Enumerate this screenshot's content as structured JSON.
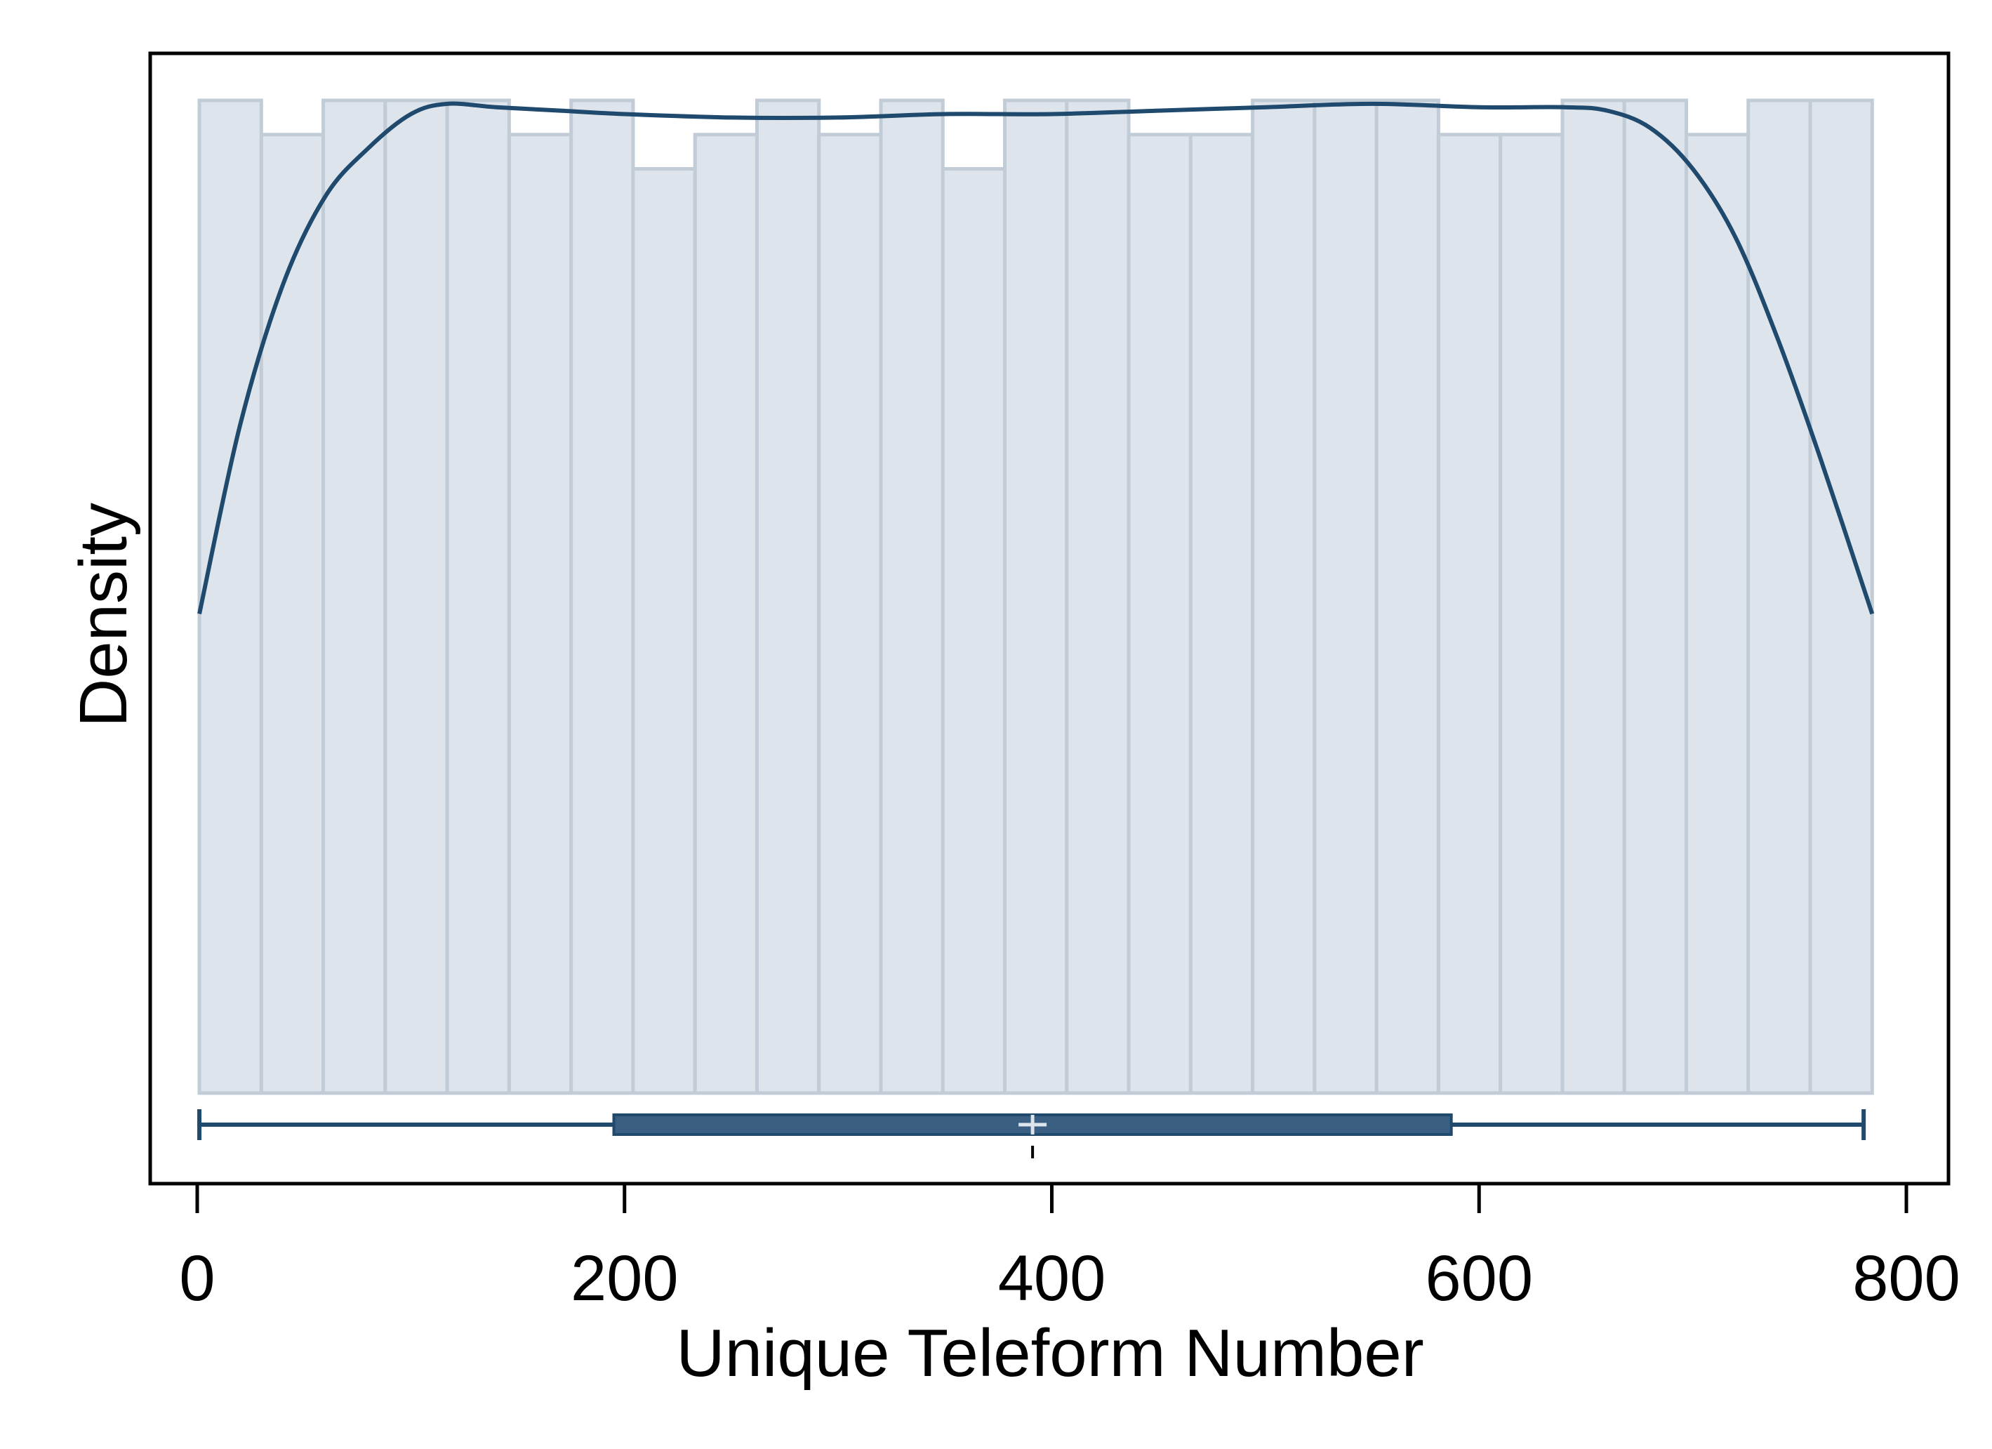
{
  "colors": {
    "background": "#ffffff",
    "bar_fill": "#dde4eb",
    "bar_stroke": "#c1ccd7",
    "kde_line": "#1f4a6e",
    "box_fill": "#3b5f82",
    "box_stroke": "#1f4a6e",
    "mean_marker": "#dde4eb",
    "frame": "#000000"
  },
  "chart_data": {
    "type": "bar",
    "subtype": "histogram_with_kde_and_boxplot",
    "title": "",
    "xlabel": "Unique Teleform Number",
    "ylabel": "Density",
    "xlim": [
      -10,
      820
    ],
    "x_ticks": [
      0,
      200,
      400,
      600,
      800
    ],
    "y_ticks": [],
    "grid": false,
    "legend": "none",
    "histogram": {
      "bin_edges": [
        1,
        30,
        59,
        88,
        117,
        146,
        175,
        204,
        233,
        262,
        291,
        320,
        349,
        378,
        407,
        436,
        465,
        494,
        523,
        552,
        581,
        610,
        639,
        668,
        697,
        726,
        755,
        784
      ],
      "counts": [
        29,
        28,
        29,
        29,
        29,
        28,
        29,
        27,
        28,
        29,
        28,
        29,
        27,
        29,
        29,
        28,
        28,
        29,
        29,
        29,
        28,
        28,
        29,
        29,
        28,
        29,
        29
      ]
    },
    "kde": {
      "x": [
        1,
        20,
        40,
        60,
        80,
        100,
        117,
        140,
        170,
        200,
        250,
        300,
        350,
        400,
        450,
        500,
        550,
        600,
        640,
        660,
        680,
        700,
        720,
        740,
        760,
        784
      ],
      "density": [
        14.0,
        19.5,
        23.6,
        26.2,
        27.6,
        28.6,
        28.9,
        28.8,
        28.7,
        28.6,
        28.5,
        28.5,
        28.6,
        28.6,
        28.7,
        28.8,
        28.9,
        28.8,
        28.8,
        28.7,
        28.2,
        27.0,
        25.0,
        22.0,
        18.5,
        14.0
      ]
    },
    "boxplot": {
      "min": 1,
      "q1": 195,
      "median": 391,
      "mean": 391,
      "q3": 587,
      "max": 780
    }
  }
}
